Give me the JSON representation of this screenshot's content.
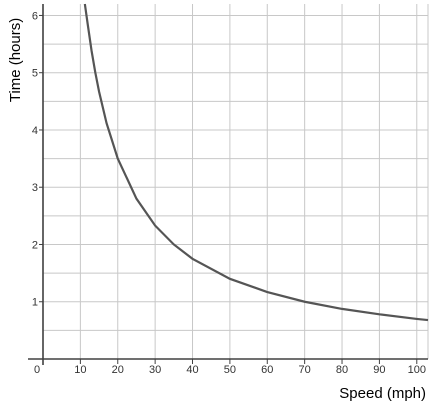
{
  "chart_data": {
    "type": "line",
    "title": "",
    "xlabel": "Speed (mph)",
    "ylabel": "Time (hours)",
    "xlim": [
      0,
      103
    ],
    "ylim": [
      0,
      6.2
    ],
    "x_ticks": [
      0,
      10,
      20,
      30,
      40,
      50,
      60,
      70,
      80,
      90,
      100
    ],
    "x_tick_labels": [
      "0",
      "10",
      "20",
      "30",
      "40",
      "50",
      "60",
      "70",
      "80",
      "90",
      "100"
    ],
    "y_ticks": [
      1,
      2,
      3,
      4,
      5,
      6
    ],
    "y_tick_labels": [
      "1",
      "2",
      "3",
      "4",
      "5",
      "6"
    ],
    "grid": true,
    "series": [
      {
        "x": [
          11.2,
          12,
          13,
          14,
          15,
          17,
          20,
          25,
          30,
          35,
          40,
          50,
          60,
          70,
          80,
          90,
          100,
          103
        ],
        "y": [
          6.2,
          5.83,
          5.38,
          5.0,
          4.67,
          4.12,
          3.5,
          2.8,
          2.33,
          2.0,
          1.75,
          1.4,
          1.17,
          1.0,
          0.875,
          0.78,
          0.7,
          0.68
        ]
      }
    ],
    "colors": {
      "curve": "#555555",
      "grid": "#c8c8c8",
      "axis": "#404040"
    }
  }
}
